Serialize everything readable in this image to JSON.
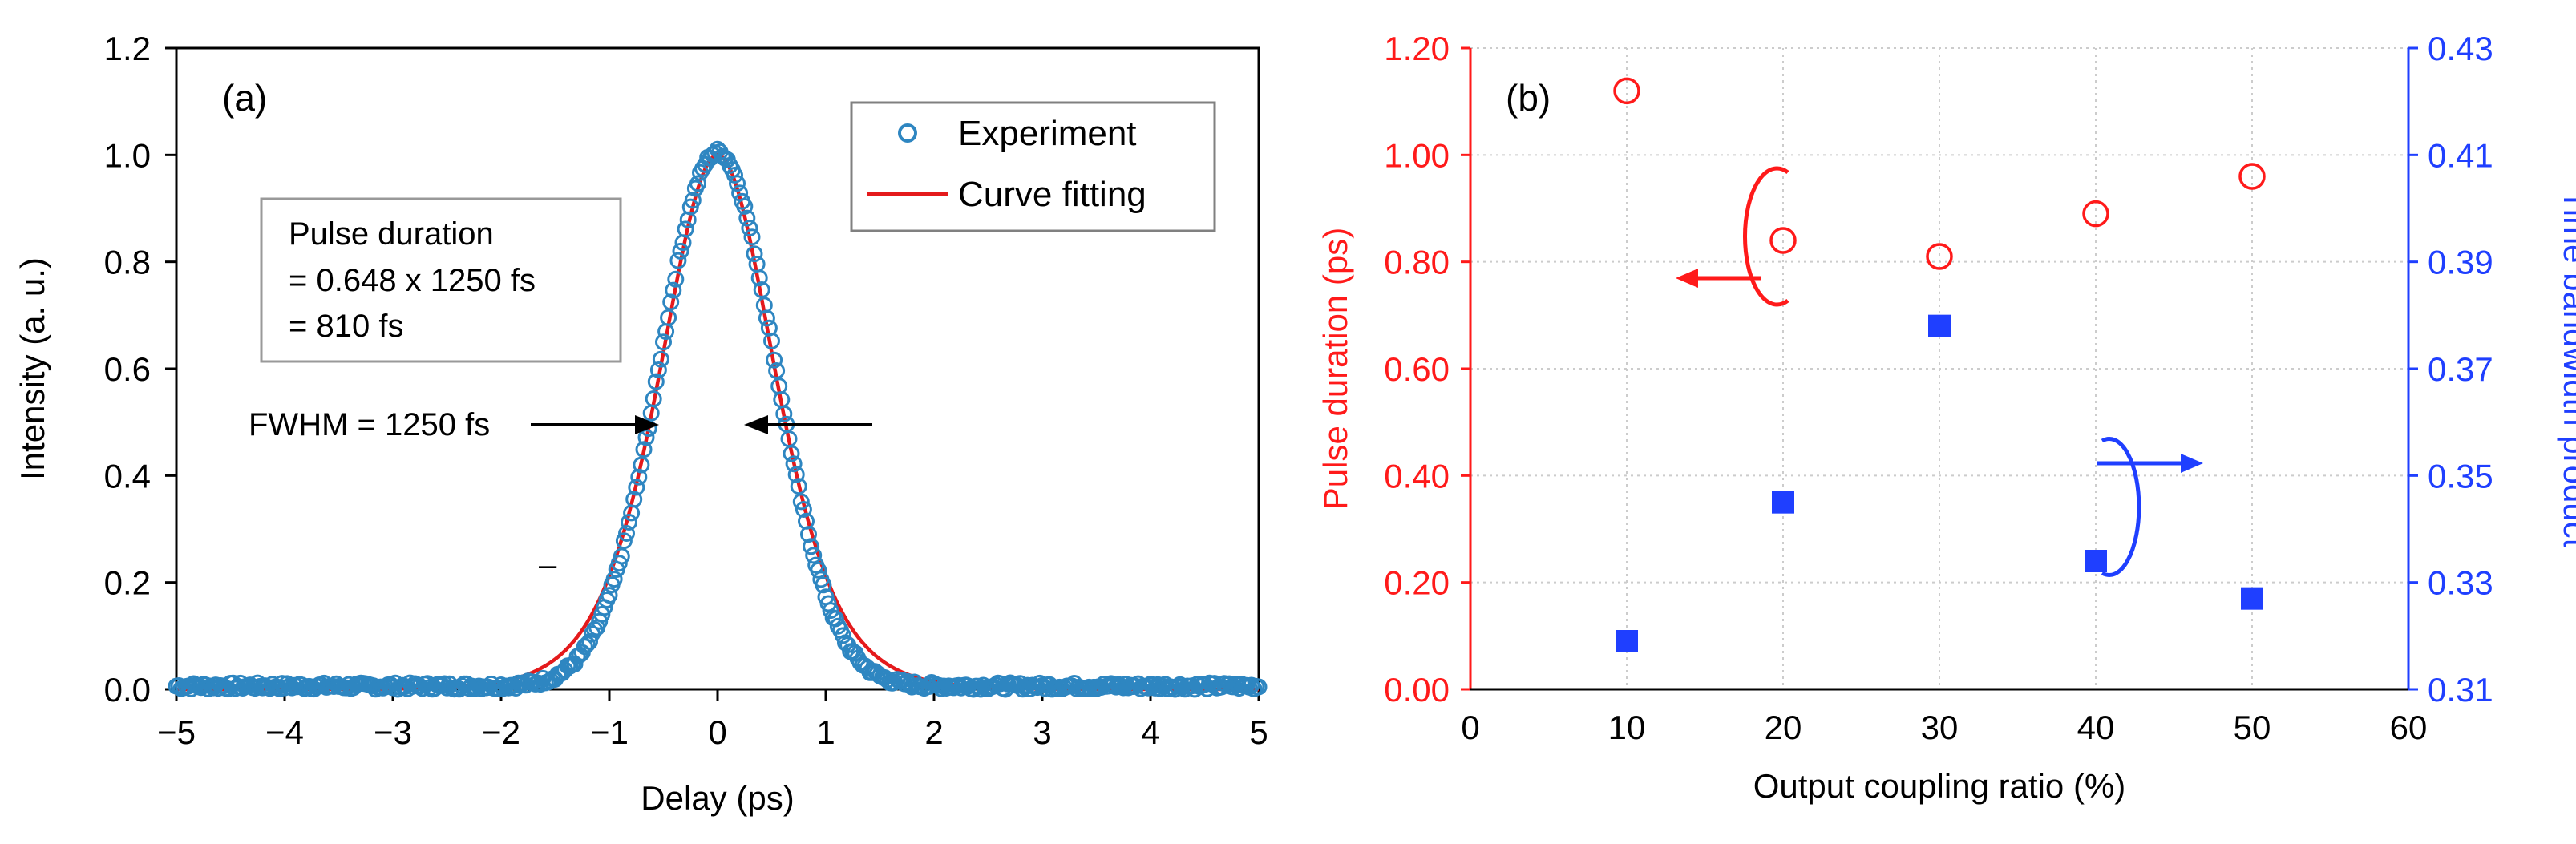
{
  "chart_data": [
    {
      "panel": "(a)",
      "type": "scatter",
      "xlabel": "Delay (ps)",
      "ylabel": "Intensity (a. u.)",
      "xlim": [
        -5,
        5
      ],
      "ylim": [
        0,
        1.2
      ],
      "x_ticks": [
        "−5",
        "−4",
        "−3",
        "−2",
        "−1",
        "0",
        "1",
        "2",
        "3",
        "4",
        "5"
      ],
      "y_ticks": [
        "0.0",
        "0.2",
        "0.4",
        "0.6",
        "0.8",
        "1.0",
        "1.2"
      ],
      "legend": [
        "Experiment",
        "Curve fitting"
      ],
      "legend_placement": "top-right",
      "series": [
        {
          "name": "Experiment",
          "marker": "open-circle",
          "color": "#2e86c1",
          "description": "Autocorrelation trace centered at 0 ps, peak 1.0, baseline ~0.005",
          "peak": 1.0,
          "center_ps": 0.0,
          "fwhm_fs": 1250
        },
        {
          "name": "Curve fitting",
          "line": "solid",
          "color": "#e41a1c",
          "model": "sech^2",
          "peak": 1.0,
          "center_ps": 0.0,
          "fwhm_fs": 1250
        }
      ],
      "box_lines": [
        "Pulse duration",
        "= 0.648 x 1250 fs",
        "= 810 fs"
      ],
      "fwhm_label": "FWHM = 1250 fs",
      "stray_mark": "–"
    },
    {
      "panel": "(b)",
      "type": "scatter",
      "xlabel": "Output coupling ratio (%)",
      "ylabel_left": "Pulse duration (ps)",
      "ylabel_right": "Time bandwidth product",
      "xlim": [
        0,
        60
      ],
      "ylim_left": [
        0,
        1.2
      ],
      "ylim_right": [
        0.31,
        0.43
      ],
      "x_ticks": [
        "0",
        "10",
        "20",
        "30",
        "40",
        "50",
        "60"
      ],
      "y_left_ticks": [
        "0.00",
        "0.20",
        "0.40",
        "0.60",
        "0.80",
        "1.00",
        "1.20"
      ],
      "y_right_ticks": [
        "0.31",
        "0.33",
        "0.35",
        "0.37",
        "0.39",
        "0.41",
        "0.43"
      ],
      "grid": true,
      "series": [
        {
          "name": "Pulse duration",
          "axis": "left",
          "marker": "open-circle",
          "color": "#ff1a1a",
          "x": [
            10,
            20,
            30,
            40,
            50
          ],
          "y": [
            1.12,
            0.84,
            0.81,
            0.89,
            0.96
          ]
        },
        {
          "name": "Time bandwidth product",
          "axis": "right",
          "marker": "filled-square",
          "color": "#1f3fff",
          "x": [
            10,
            20,
            30,
            40,
            50
          ],
          "y": [
            0.319,
            0.345,
            0.378,
            0.334,
            0.327
          ]
        }
      ]
    }
  ]
}
